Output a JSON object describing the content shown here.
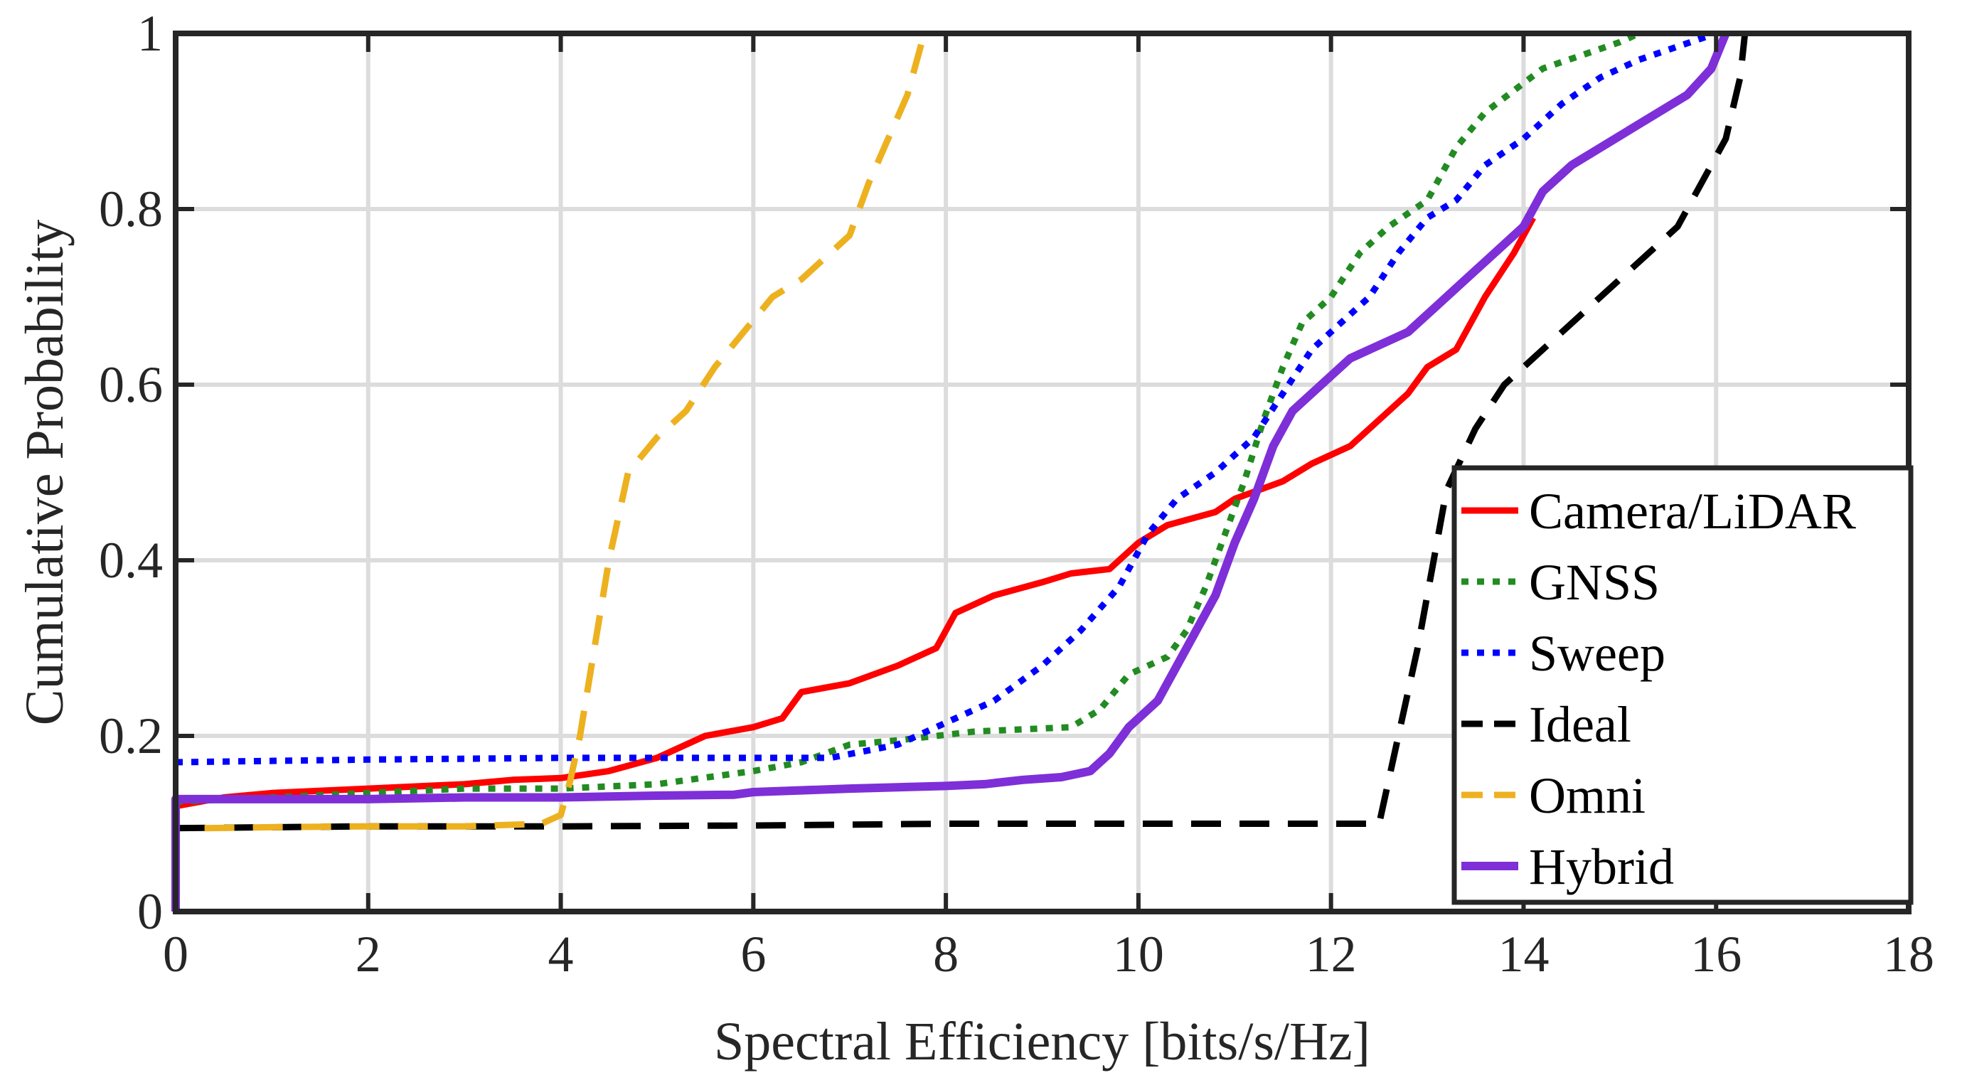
{
  "chart_data": {
    "type": "line",
    "title": "",
    "xlabel": "Spectral Efficiency [bits/s/Hz]",
    "ylabel": "Cumulative Probability",
    "xlim": [
      0,
      18
    ],
    "ylim": [
      0,
      1
    ],
    "xticks": [
      0,
      2,
      4,
      6,
      8,
      10,
      12,
      14,
      16,
      18
    ],
    "xtick_labels": [
      "0",
      "2",
      "4",
      "6",
      "8",
      "10",
      "12",
      "14",
      "16",
      "18"
    ],
    "yticks": [
      0,
      0.2,
      0.4,
      0.6,
      0.8,
      1
    ],
    "ytick_labels": [
      "0",
      "0.2",
      "0.4",
      "0.6",
      "0.8",
      "1"
    ],
    "grid": true,
    "legend_position": "bottom-right",
    "series": [
      {
        "name": "Camera/LiDAR",
        "color": "#ff0000",
        "style": "solid",
        "points": [
          [
            0,
            0.12
          ],
          [
            0.5,
            0.13
          ],
          [
            1,
            0.135
          ],
          [
            2,
            0.14
          ],
          [
            3,
            0.145
          ],
          [
            3.5,
            0.15
          ],
          [
            4,
            0.152
          ],
          [
            4.5,
            0.16
          ],
          [
            5,
            0.175
          ],
          [
            5.5,
            0.2
          ],
          [
            6,
            0.21
          ],
          [
            6.3,
            0.22
          ],
          [
            6.5,
            0.25
          ],
          [
            7,
            0.26
          ],
          [
            7.5,
            0.28
          ],
          [
            7.9,
            0.3
          ],
          [
            8.1,
            0.34
          ],
          [
            8.5,
            0.36
          ],
          [
            9,
            0.375
          ],
          [
            9.3,
            0.385
          ],
          [
            9.7,
            0.39
          ],
          [
            10,
            0.42
          ],
          [
            10.3,
            0.44
          ],
          [
            10.8,
            0.455
          ],
          [
            11,
            0.47
          ],
          [
            11.5,
            0.49
          ],
          [
            11.8,
            0.51
          ],
          [
            12.2,
            0.53
          ],
          [
            12.5,
            0.56
          ],
          [
            12.8,
            0.59
          ],
          [
            13,
            0.62
          ],
          [
            13.3,
            0.64
          ],
          [
            13.6,
            0.7
          ],
          [
            13.9,
            0.75
          ],
          [
            14.1,
            0.79
          ]
        ]
      },
      {
        "name": "GNSS",
        "color": "#228b22",
        "style": "dotted",
        "points": [
          [
            0,
            0.125
          ],
          [
            1,
            0.13
          ],
          [
            2,
            0.135
          ],
          [
            3,
            0.14
          ],
          [
            4,
            0.14
          ],
          [
            5,
            0.145
          ],
          [
            6,
            0.16
          ],
          [
            6.5,
            0.17
          ],
          [
            7,
            0.19
          ],
          [
            7.5,
            0.195
          ],
          [
            8.3,
            0.205
          ],
          [
            9.3,
            0.21
          ],
          [
            9.6,
            0.23
          ],
          [
            9.9,
            0.27
          ],
          [
            10.3,
            0.29
          ],
          [
            10.5,
            0.32
          ],
          [
            10.7,
            0.37
          ],
          [
            10.9,
            0.43
          ],
          [
            11.1,
            0.49
          ],
          [
            11.3,
            0.56
          ],
          [
            11.5,
            0.62
          ],
          [
            11.7,
            0.67
          ],
          [
            12,
            0.7
          ],
          [
            12.3,
            0.75
          ],
          [
            12.6,
            0.78
          ],
          [
            13,
            0.81
          ],
          [
            13.3,
            0.87
          ],
          [
            13.6,
            0.91
          ],
          [
            13.9,
            0.935
          ],
          [
            14.2,
            0.96
          ],
          [
            14.6,
            0.975
          ],
          [
            15,
            0.99
          ],
          [
            15.2,
            1
          ]
        ]
      },
      {
        "name": "Sweep",
        "color": "#0000ff",
        "style": "dotted",
        "points": [
          [
            0,
            0.17
          ],
          [
            2,
            0.173
          ],
          [
            4,
            0.175
          ],
          [
            6,
            0.175
          ],
          [
            6.8,
            0.175
          ],
          [
            7.5,
            0.19
          ],
          [
            8,
            0.215
          ],
          [
            8.5,
            0.24
          ],
          [
            9,
            0.28
          ],
          [
            9.4,
            0.32
          ],
          [
            9.8,
            0.37
          ],
          [
            10.1,
            0.43
          ],
          [
            10.4,
            0.47
          ],
          [
            10.8,
            0.5
          ],
          [
            11.2,
            0.54
          ],
          [
            11.5,
            0.59
          ],
          [
            11.8,
            0.64
          ],
          [
            12.1,
            0.67
          ],
          [
            12.4,
            0.7
          ],
          [
            12.7,
            0.75
          ],
          [
            13,
            0.79
          ],
          [
            13.3,
            0.81
          ],
          [
            13.6,
            0.85
          ],
          [
            14,
            0.88
          ],
          [
            14.4,
            0.92
          ],
          [
            14.8,
            0.95
          ],
          [
            15.2,
            0.97
          ],
          [
            15.6,
            0.985
          ],
          [
            16,
            1
          ]
        ]
      },
      {
        "name": "Ideal",
        "color": "#000000",
        "style": "dashed",
        "points": [
          [
            0,
            0.095
          ],
          [
            2,
            0.097
          ],
          [
            4,
            0.097
          ],
          [
            6,
            0.098
          ],
          [
            8,
            0.1
          ],
          [
            10,
            0.1
          ],
          [
            12.4,
            0.1
          ],
          [
            12.5,
            0.1
          ],
          [
            12.7,
            0.2
          ],
          [
            12.9,
            0.3
          ],
          [
            13.1,
            0.42
          ],
          [
            13.2,
            0.48
          ],
          [
            13.5,
            0.55
          ],
          [
            13.8,
            0.6
          ],
          [
            14.2,
            0.64
          ],
          [
            14.6,
            0.68
          ],
          [
            15,
            0.72
          ],
          [
            15.3,
            0.75
          ],
          [
            15.6,
            0.78
          ],
          [
            15.9,
            0.84
          ],
          [
            16.1,
            0.88
          ],
          [
            16.25,
            0.95
          ],
          [
            16.3,
            1
          ]
        ]
      },
      {
        "name": "Omni",
        "color": "#edb120",
        "style": "dashed",
        "points": [
          [
            0.3,
            0.095
          ],
          [
            1,
            0.096
          ],
          [
            2,
            0.097
          ],
          [
            3,
            0.097
          ],
          [
            3.8,
            0.1
          ],
          [
            4,
            0.11
          ],
          [
            4.1,
            0.15
          ],
          [
            4.2,
            0.2
          ],
          [
            4.35,
            0.3
          ],
          [
            4.5,
            0.4
          ],
          [
            4.7,
            0.5
          ],
          [
            5,
            0.54
          ],
          [
            5.3,
            0.57
          ],
          [
            5.6,
            0.62
          ],
          [
            5.9,
            0.66
          ],
          [
            6.2,
            0.7
          ],
          [
            6.5,
            0.72
          ],
          [
            6.8,
            0.75
          ],
          [
            7,
            0.77
          ],
          [
            7.2,
            0.83
          ],
          [
            7.4,
            0.88
          ],
          [
            7.6,
            0.93
          ],
          [
            7.75,
            0.99
          ]
        ]
      },
      {
        "name": "Hybrid",
        "color": "#7e2fd8",
        "style": "solid",
        "points": [
          [
            0,
            0
          ],
          [
            0,
            0.128
          ],
          [
            1,
            0.128
          ],
          [
            2,
            0.128
          ],
          [
            3,
            0.13
          ],
          [
            4,
            0.13
          ],
          [
            5,
            0.132
          ],
          [
            5.8,
            0.133
          ],
          [
            6,
            0.136
          ],
          [
            7,
            0.14
          ],
          [
            8,
            0.143
          ],
          [
            8.4,
            0.145
          ],
          [
            8.8,
            0.15
          ],
          [
            9.2,
            0.153
          ],
          [
            9.5,
            0.16
          ],
          [
            9.7,
            0.18
          ],
          [
            9.9,
            0.21
          ],
          [
            10.2,
            0.24
          ],
          [
            10.5,
            0.3
          ],
          [
            10.8,
            0.36
          ],
          [
            11,
            0.42
          ],
          [
            11.2,
            0.47
          ],
          [
            11.4,
            0.53
          ],
          [
            11.6,
            0.57
          ],
          [
            11.9,
            0.6
          ],
          [
            12.2,
            0.63
          ],
          [
            12.5,
            0.645
          ],
          [
            12.8,
            0.66
          ],
          [
            13.1,
            0.69
          ],
          [
            13.4,
            0.72
          ],
          [
            13.7,
            0.75
          ],
          [
            14,
            0.78
          ],
          [
            14.2,
            0.82
          ],
          [
            14.5,
            0.85
          ],
          [
            14.8,
            0.87
          ],
          [
            15.1,
            0.89
          ],
          [
            15.4,
            0.91
          ],
          [
            15.7,
            0.93
          ],
          [
            15.95,
            0.96
          ],
          [
            16.1,
            1
          ]
        ]
      }
    ]
  }
}
